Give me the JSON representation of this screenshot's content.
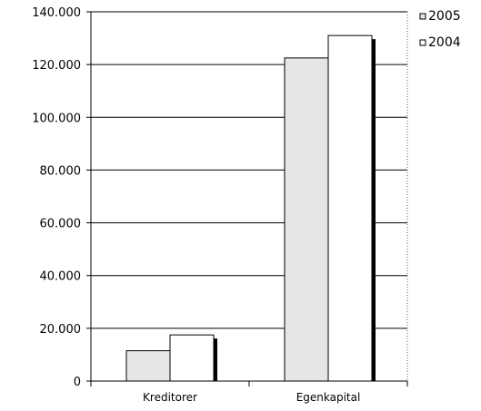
{
  "chart_data": {
    "type": "bar",
    "title": "",
    "xlabel": "",
    "ylabel": "",
    "categories": [
      "Kreditorer",
      "Egenkapital"
    ],
    "series": [
      {
        "name": "2005",
        "values": [
          11500,
          122500
        ],
        "color": "#e6e6e6"
      },
      {
        "name": "2004",
        "values": [
          17500,
          131000
        ],
        "color": "#ffffff"
      }
    ],
    "ylim": [
      0,
      140000
    ],
    "yticks": [
      0,
      20000,
      40000,
      60000,
      80000,
      100000,
      120000,
      140000
    ],
    "ytick_labels": [
      "0",
      "20.000",
      "40.000",
      "60.000",
      "80.000",
      "100.000",
      "120.000",
      "140.000"
    ],
    "grid": true,
    "legend_position": "top-right"
  }
}
